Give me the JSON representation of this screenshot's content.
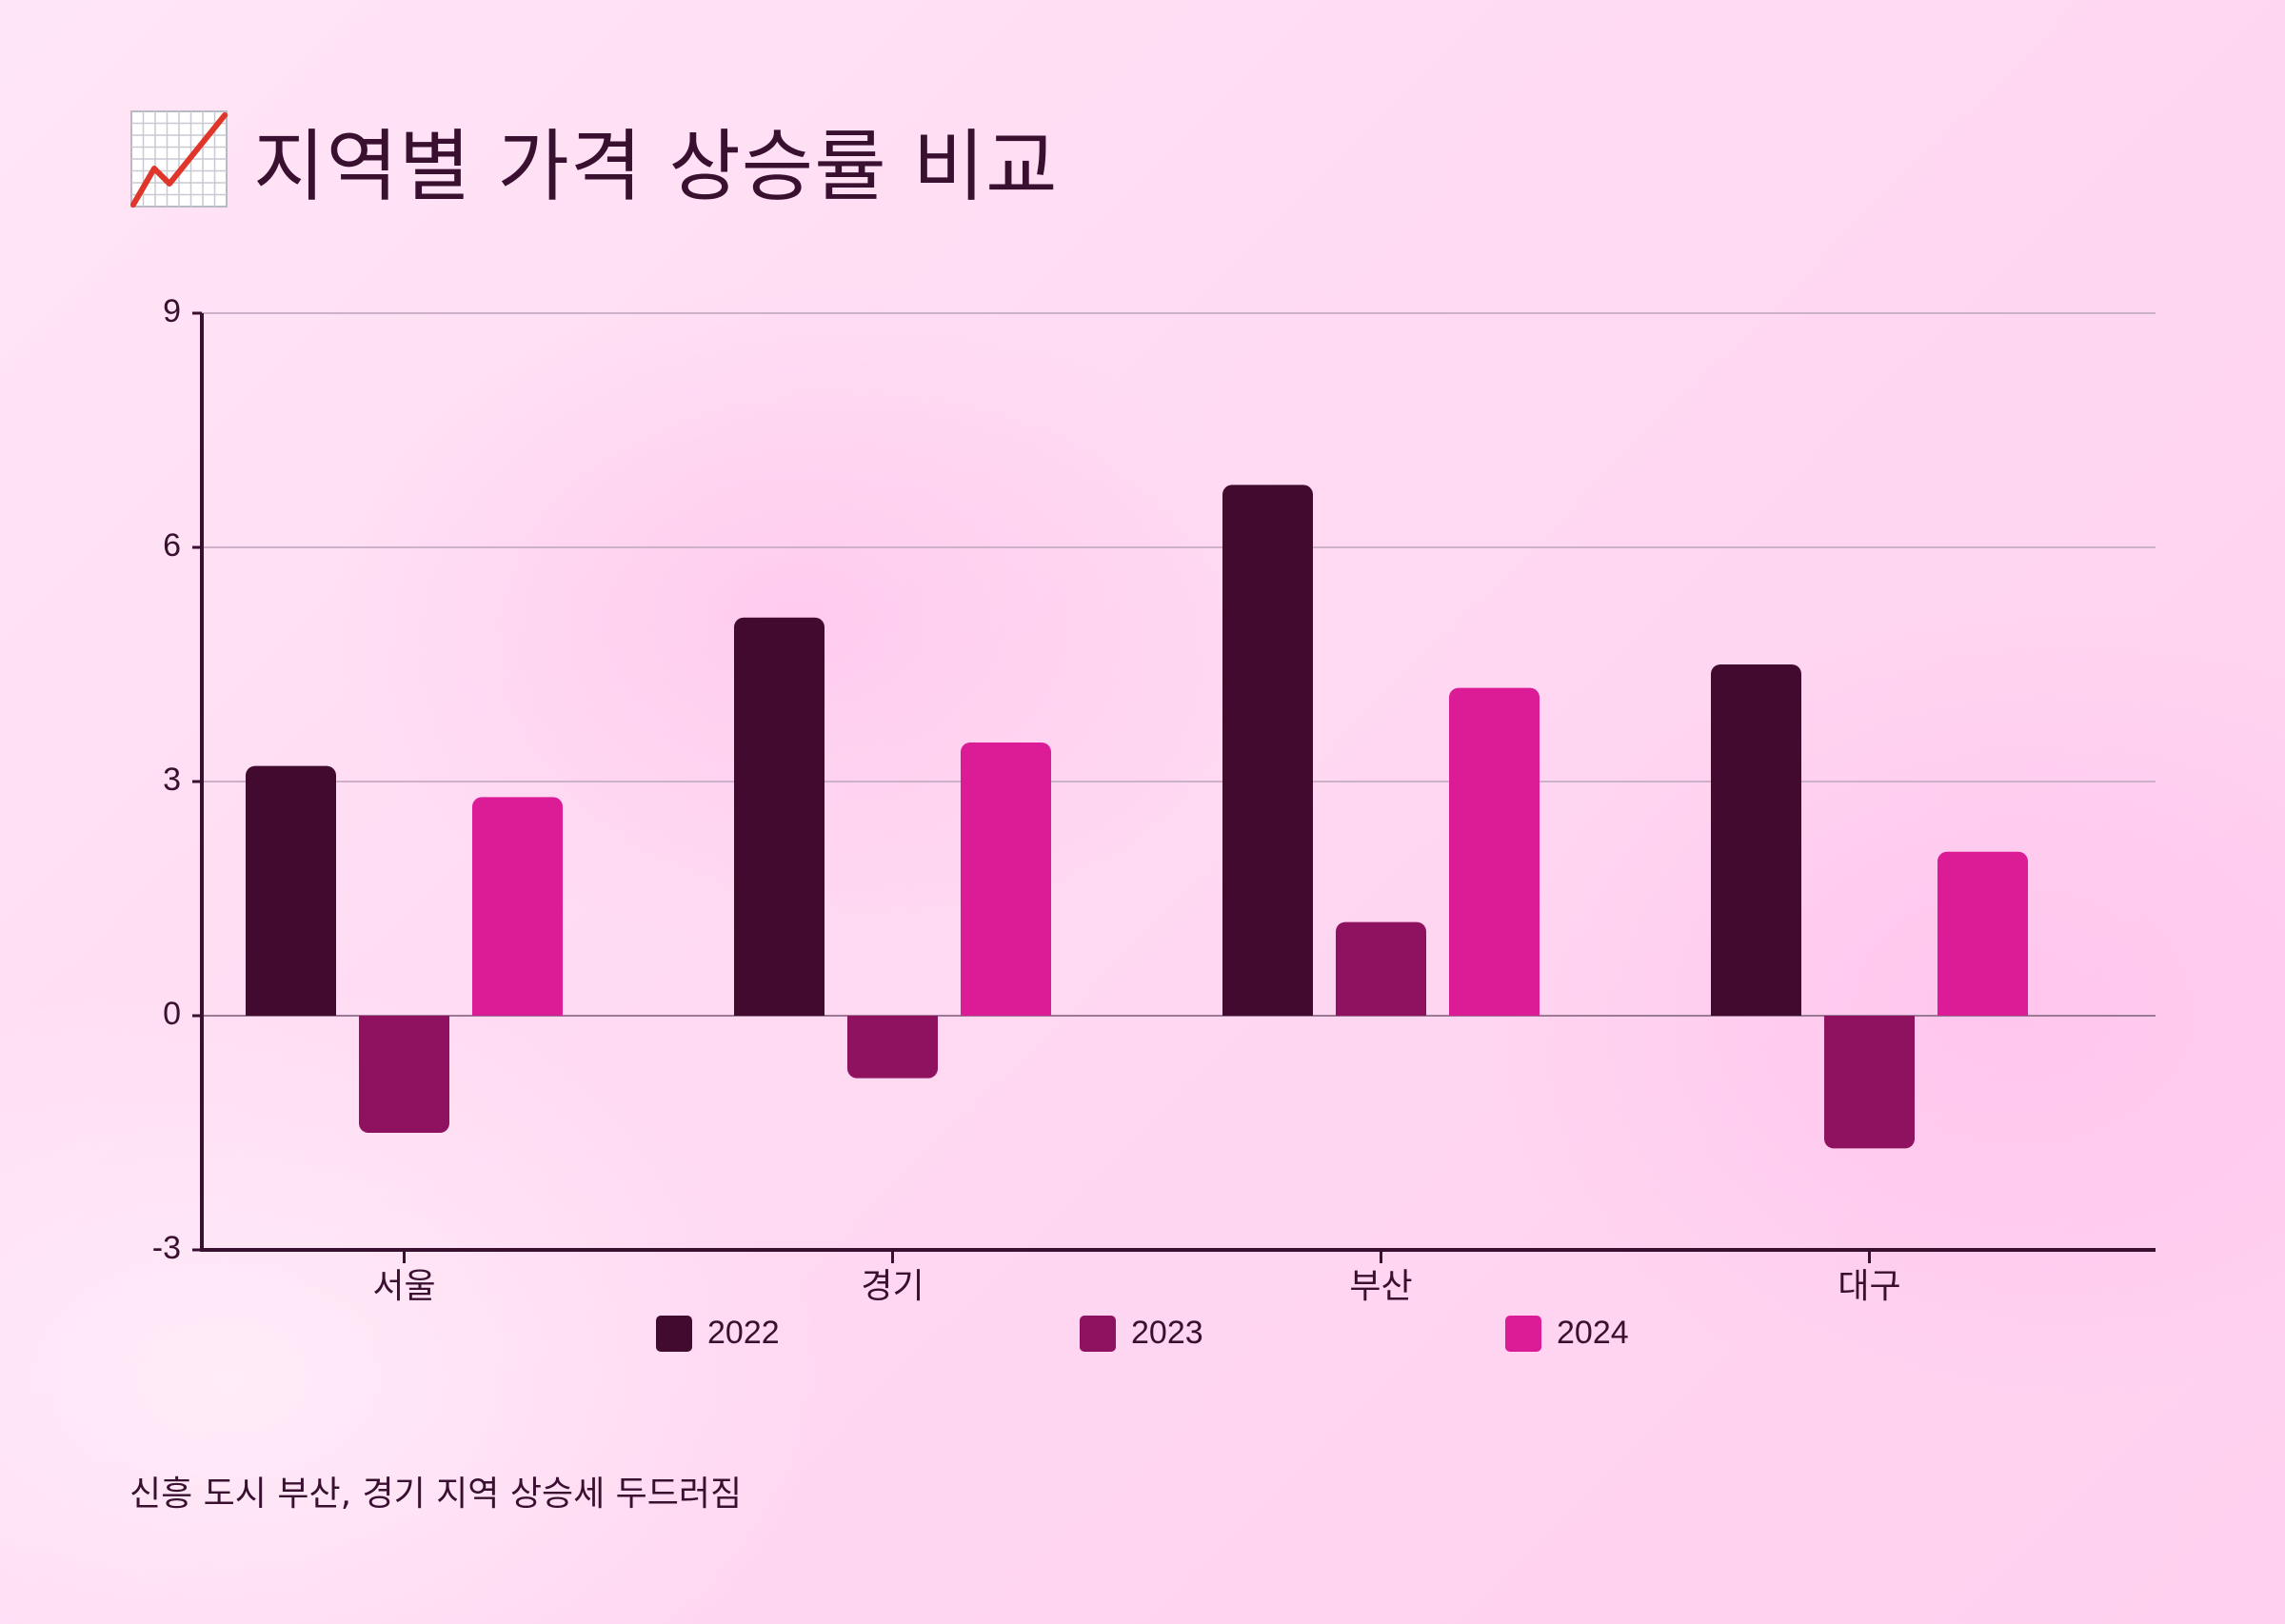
{
  "title": "지역별 가격 상승률 비교",
  "title_icon": "chart-increasing-icon",
  "note": "신흥 도시 부산, 경기 지역 상승세 두드러짐",
  "colors": {
    "2022": "#420a2e",
    "2023": "#8f1260",
    "2024": "#dc1c96"
  },
  "chart_data": {
    "type": "bar",
    "categories": [
      "서울",
      "경기",
      "부산",
      "대구"
    ],
    "series": [
      {
        "name": "2022",
        "values": [
          3.2,
          5.1,
          6.8,
          4.5
        ]
      },
      {
        "name": "2023",
        "values": [
          -1.5,
          -0.8,
          1.2,
          -1.7
        ]
      },
      {
        "name": "2024",
        "values": [
          2.8,
          3.5,
          4.2,
          2.1
        ]
      }
    ],
    "ylim": [
      -3,
      9
    ],
    "yticks": [
      -3,
      0,
      3,
      6,
      9
    ],
    "grid": true,
    "legend": "bottom"
  }
}
